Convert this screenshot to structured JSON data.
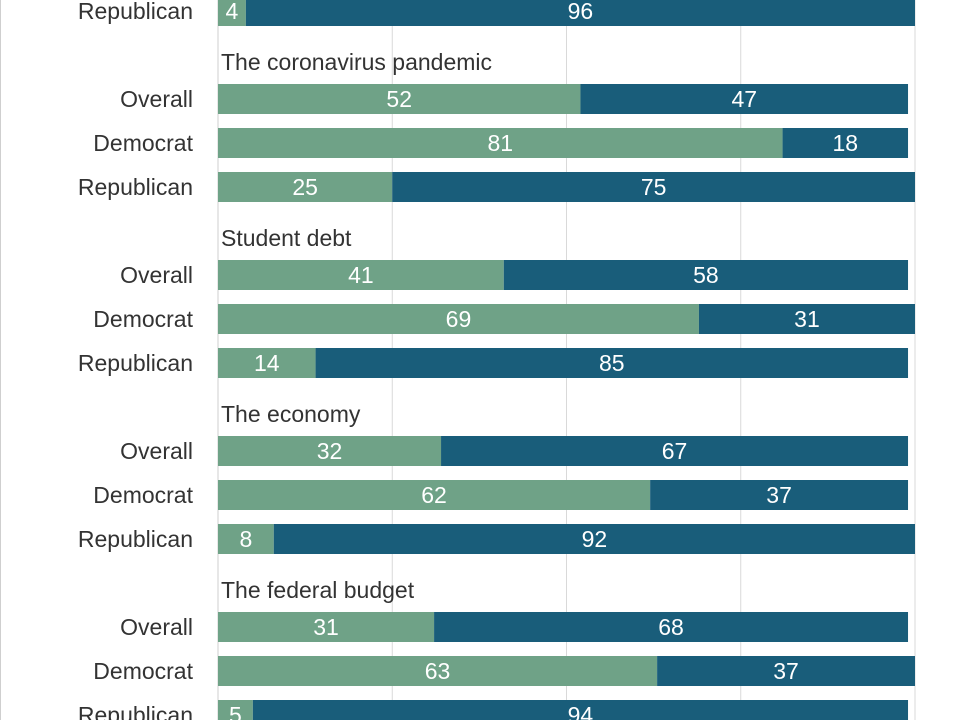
{
  "chart_data": {
    "type": "bar",
    "orientation": "horizontal",
    "stacked": true,
    "xlim": [
      0,
      100
    ],
    "grid": true,
    "colors": {
      "first": "#6fa287",
      "second": "#195d7a",
      "label": "#ffffff",
      "text": "#333333"
    },
    "groups": [
      {
        "title": "",
        "rows": [
          {
            "label": "Republican",
            "values": [
              4,
              96
            ]
          }
        ]
      },
      {
        "title": "The coronavirus pandemic",
        "rows": [
          {
            "label": "Overall",
            "values": [
              52,
              47
            ]
          },
          {
            "label": "Democrat",
            "values": [
              81,
              18
            ]
          },
          {
            "label": "Republican",
            "values": [
              25,
              75
            ]
          }
        ]
      },
      {
        "title": "Student debt",
        "rows": [
          {
            "label": "Overall",
            "values": [
              41,
              58
            ]
          },
          {
            "label": "Democrat",
            "values": [
              69,
              31
            ]
          },
          {
            "label": "Republican",
            "values": [
              14,
              85
            ]
          }
        ]
      },
      {
        "title": "The economy",
        "rows": [
          {
            "label": "Overall",
            "values": [
              32,
              67
            ]
          },
          {
            "label": "Democrat",
            "values": [
              62,
              37
            ]
          },
          {
            "label": "Republican",
            "values": [
              8,
              92
            ]
          }
        ]
      },
      {
        "title": "The federal budget",
        "rows": [
          {
            "label": "Overall",
            "values": [
              31,
              68
            ]
          },
          {
            "label": "Democrat",
            "values": [
              63,
              37
            ]
          },
          {
            "label": "Republican",
            "values": [
              5,
              94
            ]
          }
        ]
      }
    ]
  }
}
